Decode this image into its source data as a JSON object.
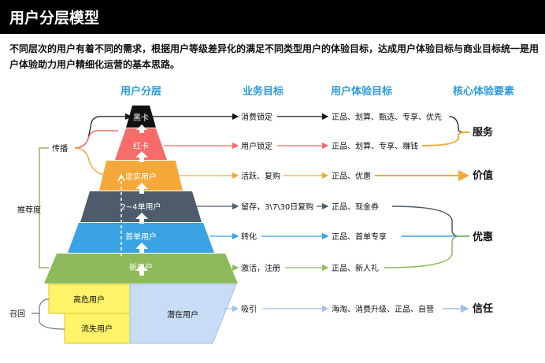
{
  "title": "用户分层模型",
  "intro": {
    "line1": "不同层次的用户有着不同的需求，根据用户等级差异化的满足不同类型用户的体验目标，达成用户体验目标与商业目标统一是用",
    "line2": "户体验助力用户精细化运营的基本思路。"
  },
  "headers": {
    "layers": "用户分层",
    "business": "业务目标",
    "experience": "用户体验目标",
    "core": "核心体验要素"
  },
  "tiers": [
    {
      "name": "黑卡",
      "color": "#111111",
      "business": "消费锁定",
      "experience": "正品、划算、甄选、专享、优先"
    },
    {
      "name": "红卡",
      "color": "#f76b6b",
      "business": "用户锁定",
      "experience": "正品、划算、专享、赚钱"
    },
    {
      "name": "忠实用户",
      "color": "#f5a83a",
      "business": "活跃、复购",
      "experience": "正品、优惠"
    },
    {
      "name": "2~4单用户",
      "color": "#4d5b6a",
      "business": "留存，3\\7\\30日复购",
      "experience": "正品、现金券"
    },
    {
      "name": "首单用户",
      "color": "#3aa3e3",
      "business": "转化",
      "experience": "正品、首单专享"
    },
    {
      "name": "新用户",
      "color": "#8dba5a",
      "business": "激活，注册",
      "experience": "正品、新人礼"
    }
  ],
  "base": {
    "risk": "高危用户",
    "lost": "流失用户",
    "potential": "潜在用户",
    "business": "吸引",
    "experience": "海淘、消费升级、正品、自营"
  },
  "core_elements": {
    "service": "服务",
    "value": "价值",
    "discount": "优惠",
    "trust": "信任"
  },
  "side_labels": {
    "spread": "传播",
    "recommend": "推荐度",
    "recall": "召回"
  },
  "colors": {
    "black": "#111111",
    "red": "#f76b6b",
    "orange": "#f5a83a",
    "slate": "#4d5b6a",
    "blue": "#3aa3e3",
    "green": "#8dba5a",
    "yellow": "#fff36a",
    "lightblue": "#c9dcf6"
  }
}
